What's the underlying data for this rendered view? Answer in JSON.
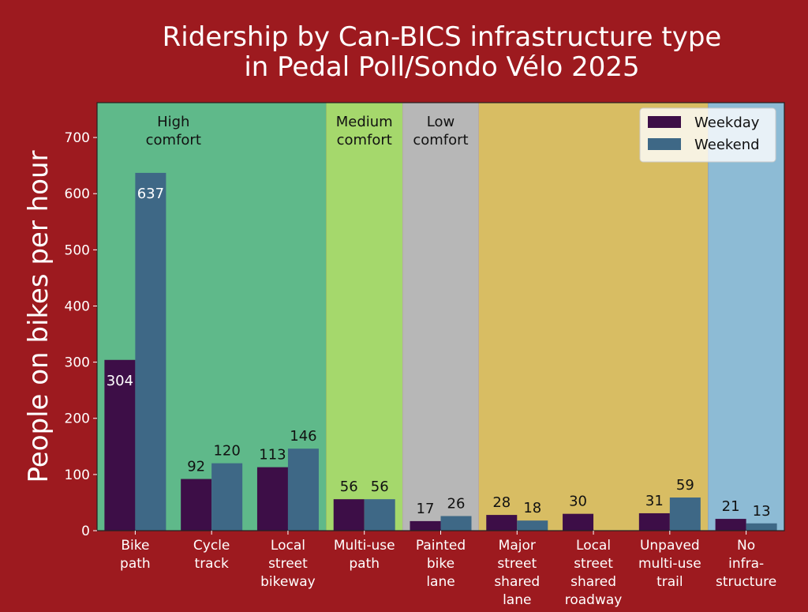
{
  "chart_data": {
    "type": "bar",
    "title": [
      "Ridership by Can-BICS infrastructure type",
      "in Pedal Poll/Sondo Vélo 2025"
    ],
    "xlabel": "",
    "ylabel": "People on bikes per hour",
    "ylim": [
      0,
      762
    ],
    "yticks": [
      0,
      100,
      200,
      300,
      400,
      500,
      600,
      700
    ],
    "categories": [
      [
        "Bike",
        "path"
      ],
      [
        "Cycle",
        "track"
      ],
      [
        "Local",
        "street",
        "bikeway"
      ],
      [
        "Multi-use",
        "path"
      ],
      [
        "Painted",
        "bike",
        "lane"
      ],
      [
        "Major",
        "street",
        "shared",
        "lane"
      ],
      [
        "Local",
        "street",
        "shared",
        "roadway"
      ],
      [
        "Unpaved",
        "multi-use",
        "trail"
      ],
      [
        "No",
        "infra-",
        "structure"
      ]
    ],
    "series": [
      {
        "name": "Weekday",
        "color": "#3d0e47",
        "values": [
          304,
          92,
          113,
          56,
          17,
          28,
          30,
          31,
          21
        ]
      },
      {
        "name": "Weekend",
        "color": "#3e6886",
        "values": [
          637,
          120,
          146,
          56,
          26,
          18,
          null,
          59,
          13
        ]
      }
    ],
    "comfort_bands": [
      {
        "label": [
          "High",
          "comfort"
        ],
        "from": 0,
        "to": 2,
        "color": "#5fb98a"
      },
      {
        "label": [
          "Medium",
          "comfort"
        ],
        "from": 3,
        "to": 3,
        "color": "#a5d86c"
      },
      {
        "label": [
          "Low",
          "comfort"
        ],
        "from": 4,
        "to": 4,
        "color": "#b7b7b7"
      },
      {
        "label": [],
        "from": 5,
        "to": 7,
        "color": "#d8bd63"
      },
      {
        "label": [],
        "from": 8,
        "to": 8,
        "color": "#8dbbd5"
      }
    ],
    "legend_position": "top-right",
    "grid": false
  }
}
